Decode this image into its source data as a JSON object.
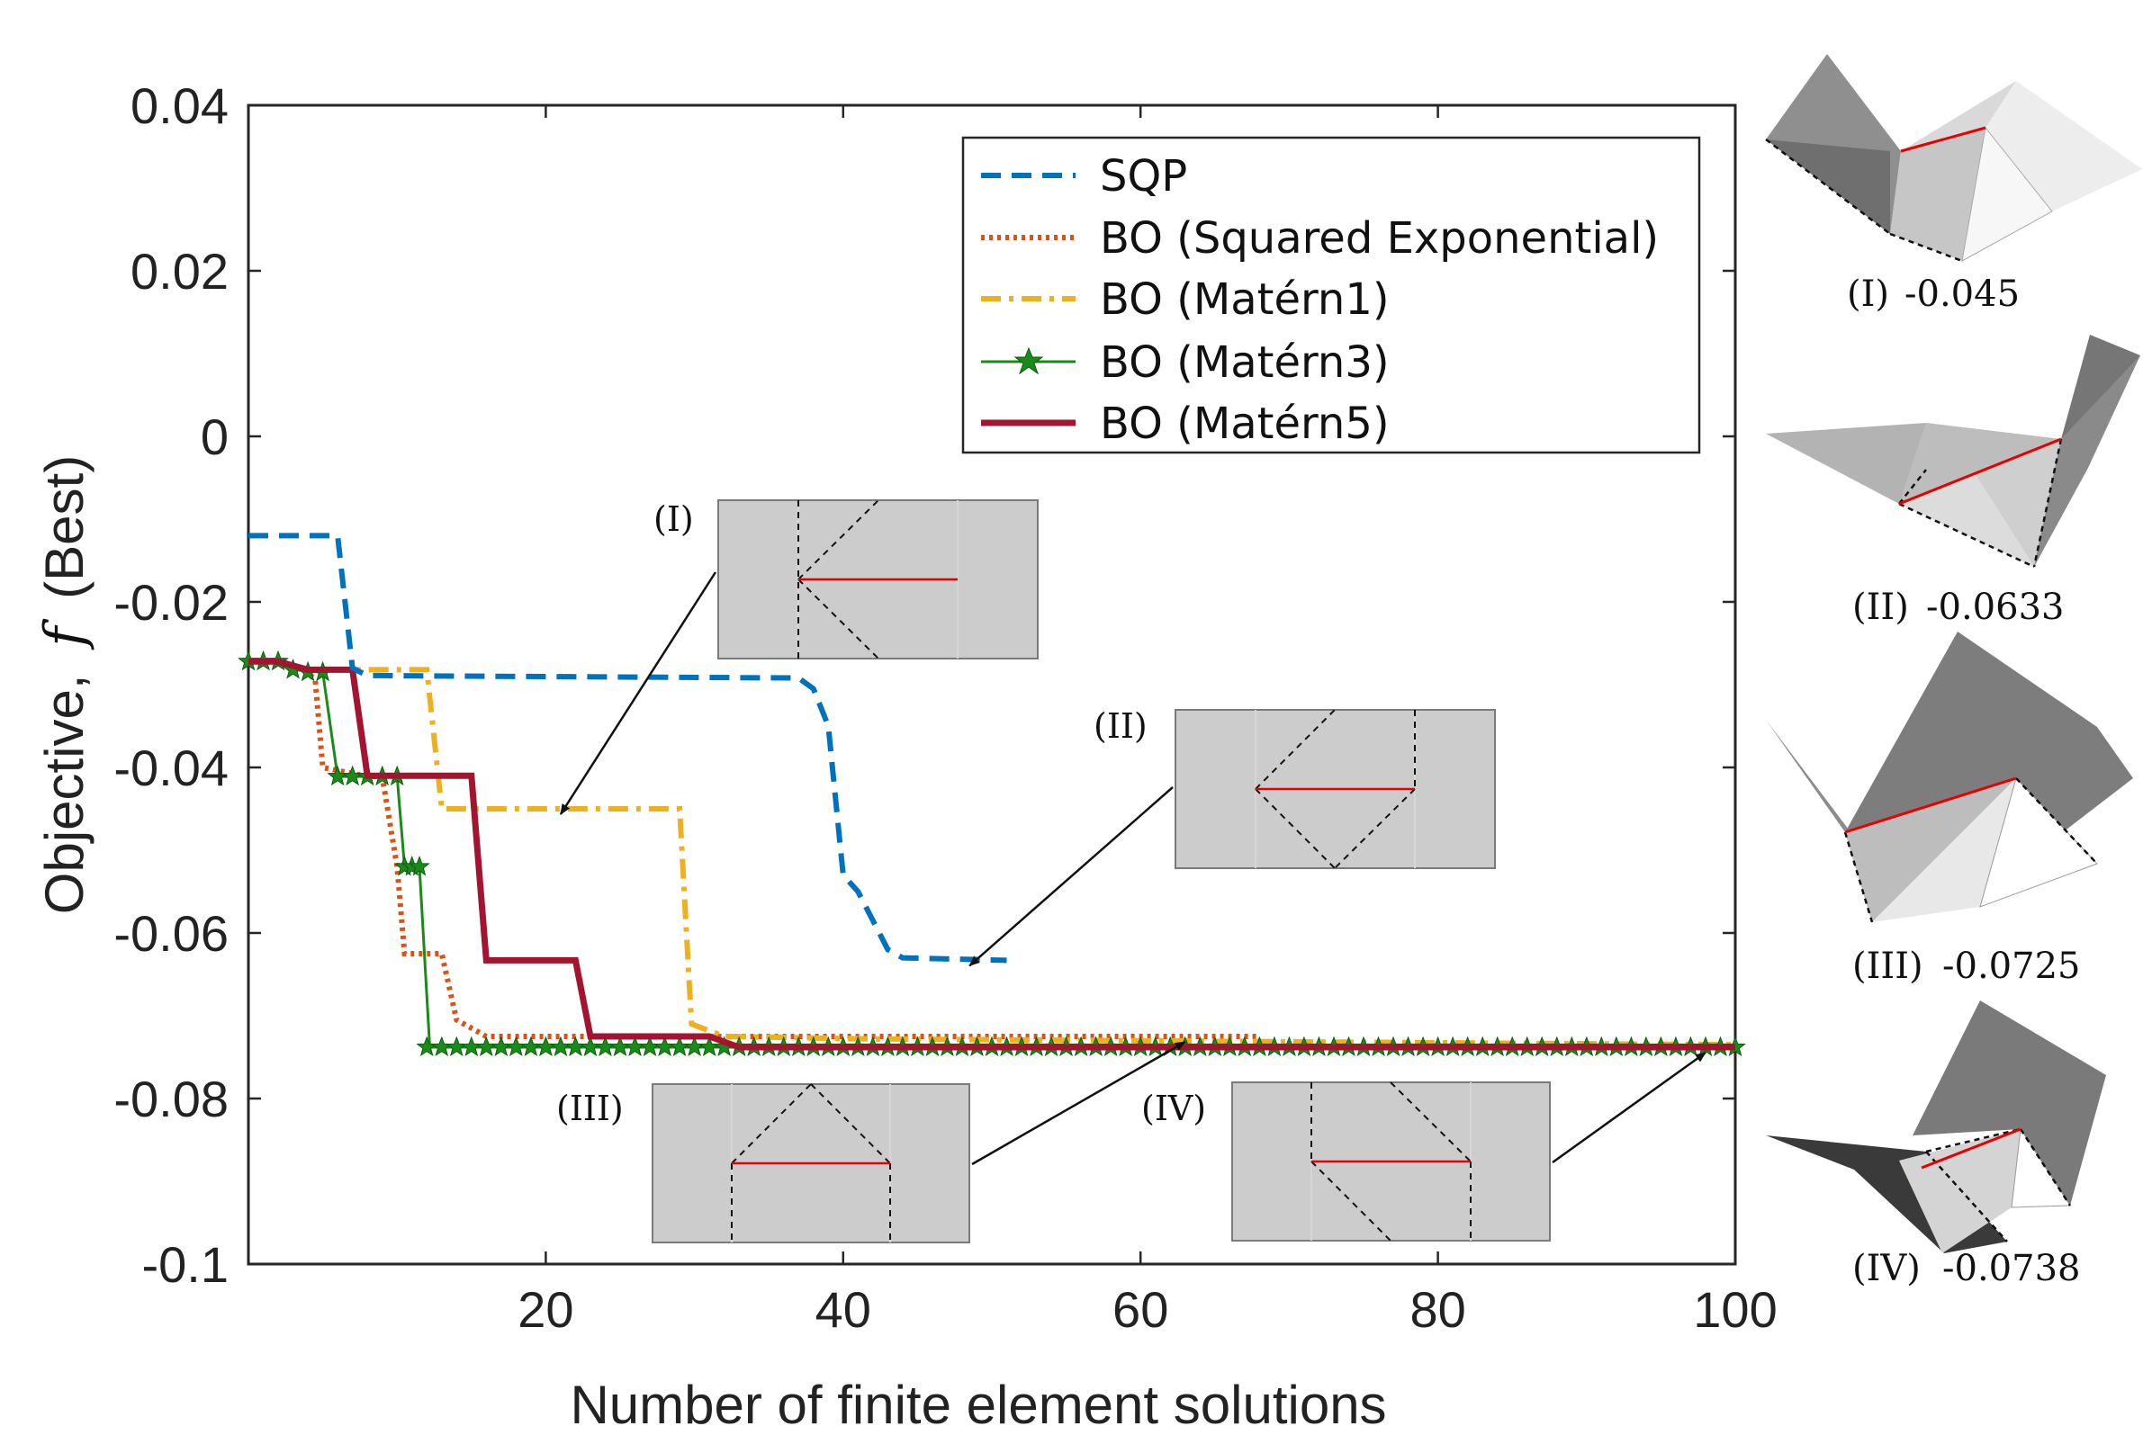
{
  "chart_data": {
    "type": "line",
    "xlabel": "Number of finite element solutions",
    "ylabel_prefix": "Objective,",
    "ylabel_symbol": "f",
    "ylabel_suffix": "(Best)",
    "xlim": [
      0,
      100
    ],
    "ylim": [
      -0.1,
      0.04
    ],
    "xticks": [
      20,
      40,
      60,
      80,
      100
    ],
    "xtick_labels": [
      "20",
      "40",
      "60",
      "80",
      "100"
    ],
    "yticks": [
      0.04,
      0.02,
      0,
      -0.02,
      -0.04,
      -0.06,
      -0.08,
      -0.1
    ],
    "ytick_labels": [
      "0.04",
      "0.02",
      "0",
      "-0.02",
      "-0.04",
      "-0.06",
      "-0.08",
      "-0.1"
    ],
    "grid": false,
    "legend_position": "top-right",
    "series": [
      {
        "name": "SQP",
        "color": "#0072BD",
        "style": "dashed",
        "points": [
          [
            0,
            -0.012
          ],
          [
            6,
            -0.012
          ],
          [
            7,
            -0.028
          ],
          [
            8,
            -0.0289
          ],
          [
            37,
            -0.0292
          ],
          [
            38,
            -0.0305
          ],
          [
            39,
            -0.035
          ],
          [
            40,
            -0.053
          ],
          [
            41,
            -0.055
          ],
          [
            43,
            -0.062
          ],
          [
            44,
            -0.063
          ],
          [
            51,
            -0.0633
          ]
        ]
      },
      {
        "name": "BO (Squared Exponential)",
        "color": "#D95319",
        "style": "dotted",
        "points": [
          [
            0,
            -0.0272
          ],
          [
            2,
            -0.0272
          ],
          [
            4,
            -0.0285
          ],
          [
            4.5,
            -0.0295
          ],
          [
            5,
            -0.04
          ],
          [
            8,
            -0.0411
          ],
          [
            9,
            -0.0411
          ],
          [
            10,
            -0.052
          ],
          [
            10.5,
            -0.0625
          ],
          [
            13,
            -0.0625
          ],
          [
            14,
            -0.0705
          ],
          [
            16,
            -0.0725
          ],
          [
            68,
            -0.0725
          ]
        ]
      },
      {
        "name": "BO (Matérn1)",
        "color": "#EDB120",
        "style": "dashdot",
        "points": [
          [
            0,
            -0.0272
          ],
          [
            2,
            -0.0272
          ],
          [
            4,
            -0.0282
          ],
          [
            12,
            -0.0282
          ],
          [
            13,
            -0.045
          ],
          [
            29,
            -0.045
          ],
          [
            29.8,
            -0.071
          ],
          [
            32,
            -0.0725
          ],
          [
            42,
            -0.0728
          ],
          [
            100,
            -0.0735
          ]
        ]
      },
      {
        "name": "BO (Matérn3)",
        "color": "#1A8A1A",
        "style": "solid-star",
        "points": [
          [
            0,
            -0.0272
          ],
          [
            2,
            -0.0272
          ],
          [
            3,
            -0.0282
          ],
          [
            5,
            -0.0285
          ],
          [
            6,
            -0.0411
          ],
          [
            9,
            -0.0411
          ],
          [
            10,
            -0.0411
          ],
          [
            10.5,
            -0.052
          ],
          [
            11.5,
            -0.052
          ],
          [
            12.2,
            -0.0738
          ],
          [
            100,
            -0.0738
          ]
        ],
        "marker_points": [
          [
            0,
            -0.0272
          ],
          [
            1,
            -0.0272
          ],
          [
            2,
            -0.0272
          ],
          [
            3,
            -0.0282
          ],
          [
            4,
            -0.0285
          ],
          [
            5,
            -0.0285
          ],
          [
            6,
            -0.0411
          ],
          [
            7,
            -0.0411
          ],
          [
            8,
            -0.0411
          ],
          [
            9,
            -0.0411
          ],
          [
            10,
            -0.0411
          ],
          [
            10.5,
            -0.052
          ],
          [
            11,
            -0.052
          ],
          [
            11.5,
            -0.052
          ]
        ],
        "marker_start": 12,
        "marker_end": 100
      },
      {
        "name": "BO (Matérn5)",
        "color": "#A2142F",
        "style": "solid-thick",
        "points": [
          [
            0,
            -0.0272
          ],
          [
            2,
            -0.0272
          ],
          [
            4,
            -0.0282
          ],
          [
            7,
            -0.0282
          ],
          [
            8,
            -0.041
          ],
          [
            15,
            -0.041
          ],
          [
            16,
            -0.0633
          ],
          [
            22,
            -0.0633
          ],
          [
            23,
            -0.0725
          ],
          [
            31,
            -0.0725
          ],
          [
            33,
            -0.0738
          ],
          [
            100,
            -0.0738
          ]
        ]
      }
    ],
    "annotations": [
      {
        "label": "(I)",
        "value": "-0.045",
        "target": [
          21,
          -0.045
        ]
      },
      {
        "label": "(II)",
        "value": "-0.0633",
        "target": [
          48.5,
          -0.0633
        ]
      },
      {
        "label": "(III)",
        "value": "-0.0725",
        "target": [
          63,
          -0.0725
        ]
      },
      {
        "label": "(IV)",
        "value": "-0.0738",
        "target": [
          98,
          -0.0738
        ]
      }
    ]
  }
}
